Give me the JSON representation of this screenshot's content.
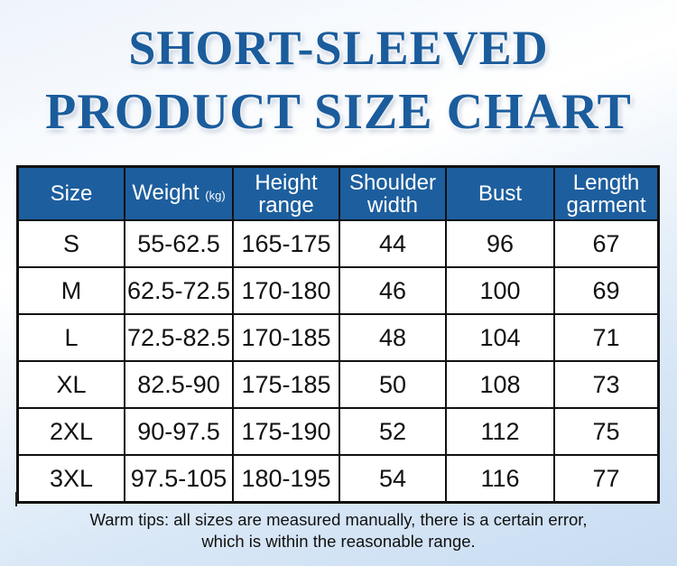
{
  "title": {
    "line1": "SHORT-SLEEVED",
    "line2": "PRODUCT SIZE CHART"
  },
  "colors": {
    "title": "#1b5c9c",
    "header_bg": "#1d5e9e"
  },
  "table": {
    "headers": [
      {
        "label": "Size"
      },
      {
        "label": "Weight",
        "unit": "(kg)"
      },
      {
        "label": "Height",
        "label2": "range"
      },
      {
        "label": "Shoulder",
        "label2": "width"
      },
      {
        "label": "Bust"
      },
      {
        "label": "Length",
        "label2": "garment"
      }
    ],
    "rows": [
      [
        "S",
        "55-62.5",
        "165-175",
        "44",
        "96",
        "67"
      ],
      [
        "M",
        "62.5-72.5",
        "170-180",
        "46",
        "100",
        "69"
      ],
      [
        "L",
        "72.5-82.5",
        "170-185",
        "48",
        "104",
        "71"
      ],
      [
        "XL",
        "82.5-90",
        "175-185",
        "50",
        "108",
        "73"
      ],
      [
        "2XL",
        "90-97.5",
        "175-190",
        "52",
        "112",
        "75"
      ],
      [
        "3XL",
        "97.5-105",
        "180-195",
        "54",
        "116",
        "77"
      ]
    ]
  },
  "tips": {
    "line1": "Warm tips: all sizes are measured manually, there is a certain error,",
    "line2": "which is within the reasonable range."
  }
}
